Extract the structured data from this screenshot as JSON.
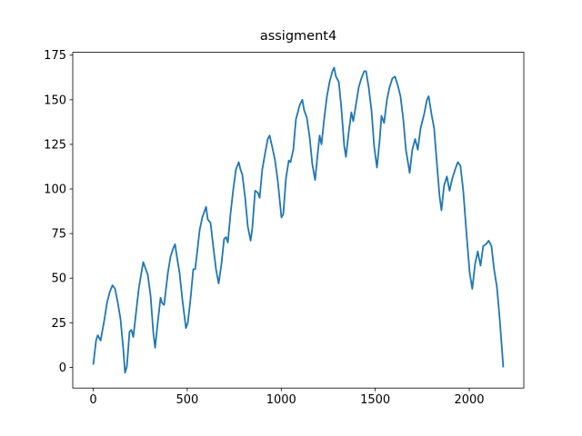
{
  "chart_data": {
    "type": "line",
    "title": "assigment4",
    "x": [
      0,
      15,
      24,
      39,
      58,
      73,
      87,
      102,
      116,
      131,
      145,
      160,
      169,
      179,
      193,
      203,
      213,
      227,
      242,
      256,
      266,
      276,
      290,
      305,
      319,
      329,
      343,
      358,
      367,
      377,
      397,
      411,
      426,
      435,
      445,
      459,
      474,
      493,
      503,
      517,
      532,
      542,
      551,
      566,
      580,
      600,
      609,
      624,
      638,
      653,
      667,
      682,
      696,
      706,
      716,
      730,
      745,
      759,
      774,
      783,
      793,
      808,
      822,
      837,
      846,
      861,
      875,
      885,
      899,
      914,
      928,
      938,
      953,
      967,
      982,
      1001,
      1011,
      1025,
      1040,
      1049,
      1064,
      1078,
      1098,
      1112,
      1122,
      1136,
      1151,
      1165,
      1180,
      1194,
      1204,
      1214,
      1228,
      1243,
      1257,
      1272,
      1281,
      1291,
      1306,
      1320,
      1335,
      1344,
      1359,
      1373,
      1383,
      1397,
      1412,
      1426,
      1441,
      1451,
      1465,
      1480,
      1494,
      1509,
      1523,
      1533,
      1547,
      1562,
      1576,
      1591,
      1605,
      1620,
      1634,
      1649,
      1663,
      1683,
      1697,
      1712,
      1726,
      1741,
      1760,
      1775,
      1784,
      1799,
      1813,
      1828,
      1842,
      1852,
      1866,
      1881,
      1895,
      1910,
      1925,
      1939,
      1953,
      1968,
      1983,
      2002,
      2016,
      2031,
      2045,
      2060,
      2074,
      2089,
      2103,
      2118,
      2132,
      2147,
      2162,
      2181
    ],
    "series": [
      {
        "color": "#1f77b4",
        "values": [
          1.5,
          15,
          18,
          15,
          26,
          36,
          42,
          46,
          44,
          36,
          27,
          10,
          -3,
          0.5,
          20,
          21,
          17,
          30,
          44,
          53,
          59,
          56,
          52,
          40,
          20,
          11,
          25,
          39,
          36,
          35,
          53,
          62,
          67,
          69,
          62,
          53,
          38,
          22,
          25,
          38,
          55,
          55,
          63,
          77,
          84,
          90,
          83,
          81,
          68,
          55,
          47,
          58,
          72,
          73,
          70,
          86,
          100,
          111,
          115,
          111,
          108,
          95,
          79,
          71,
          78,
          99,
          98,
          95,
          111,
          120,
          128,
          130,
          123,
          116,
          104,
          84,
          86,
          106,
          116,
          115,
          122,
          139,
          147,
          150,
          144,
          140,
          129,
          114,
          105,
          120,
          130,
          125,
          139,
          152,
          160,
          166,
          168,
          163,
          160,
          145,
          124,
          118,
          132,
          143,
          138,
          147,
          157,
          162,
          166,
          166,
          157,
          144,
          124,
          112,
          127,
          141,
          137,
          150,
          157,
          162,
          163,
          158,
          152,
          139,
          122,
          109,
          122,
          128,
          122,
          134,
          142,
          150,
          152,
          142,
          134,
          114,
          96,
          88,
          102,
          107,
          99,
          106,
          111,
          115,
          113,
          99,
          78,
          53,
          44,
          58,
          65,
          57,
          68,
          69,
          71,
          68,
          55,
          45,
          27,
          0
        ]
      }
    ],
    "xlim": [
      -109,
      2290
    ],
    "ylim": [
      -11.6,
      176.6
    ],
    "xticks": [
      0,
      500,
      1000,
      1500,
      2000
    ],
    "yticks": [
      0,
      25,
      50,
      75,
      100,
      125,
      150,
      175
    ]
  }
}
